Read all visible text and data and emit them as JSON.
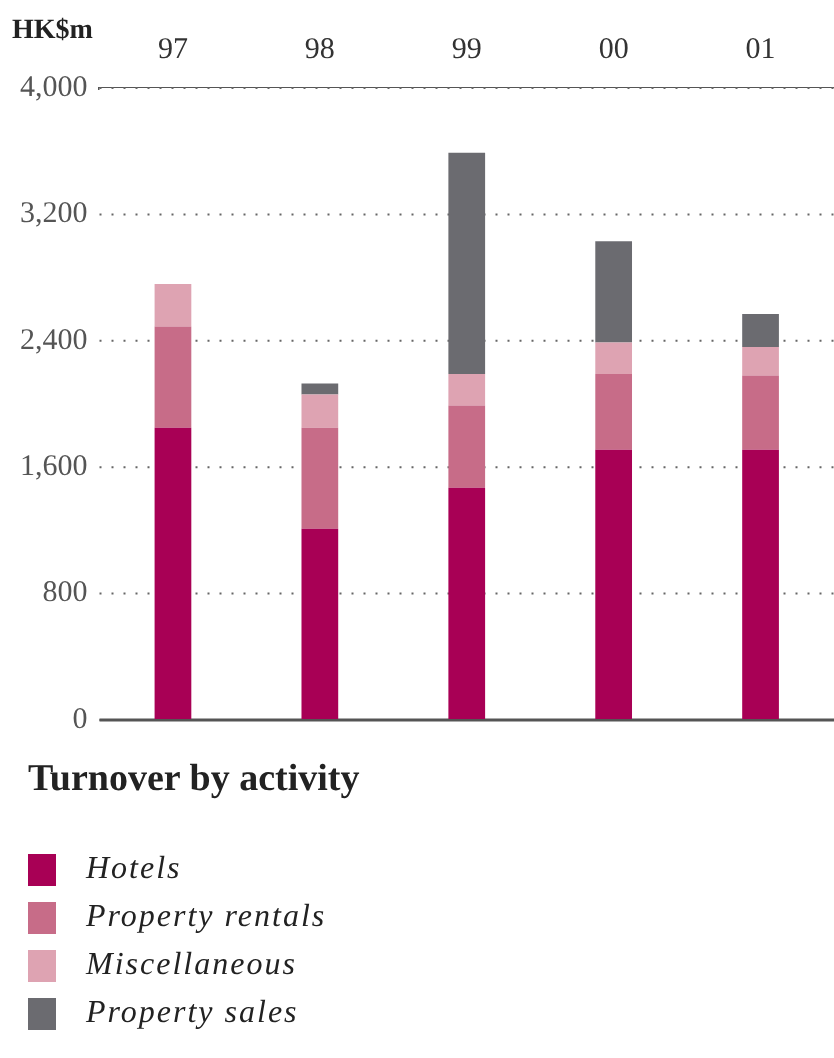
{
  "chart_data": {
    "type": "bar",
    "title": "Turnover by activity",
    "ylabel": "HK$m",
    "categories": [
      "97",
      "98",
      "99",
      "00",
      "01"
    ],
    "stacked": true,
    "series": [
      {
        "name": "Hotels",
        "color": "#a80055",
        "values": [
          1850,
          1210,
          1470,
          1710,
          1710
        ]
      },
      {
        "name": "Property rentals",
        "color": "#c76c88",
        "values": [
          640,
          640,
          520,
          480,
          470
        ]
      },
      {
        "name": "Miscellaneous",
        "color": "#dea3b2",
        "values": [
          270,
          210,
          200,
          200,
          180
        ]
      },
      {
        "name": "Property sales",
        "color": "#6b6b70",
        "values": [
          null,
          70,
          1400,
          640,
          210
        ]
      }
    ],
    "ylim": [
      0,
      4000
    ],
    "yticks": [
      0,
      800,
      {
        "value": 1600,
        "label": "1,600"
      },
      {
        "value": 2400,
        "label": "2,400"
      },
      {
        "value": 3200,
        "label": "3,200"
      },
      {
        "value": 4000,
        "label": "4,000"
      }
    ],
    "grid": "y",
    "legend": "bottom"
  }
}
